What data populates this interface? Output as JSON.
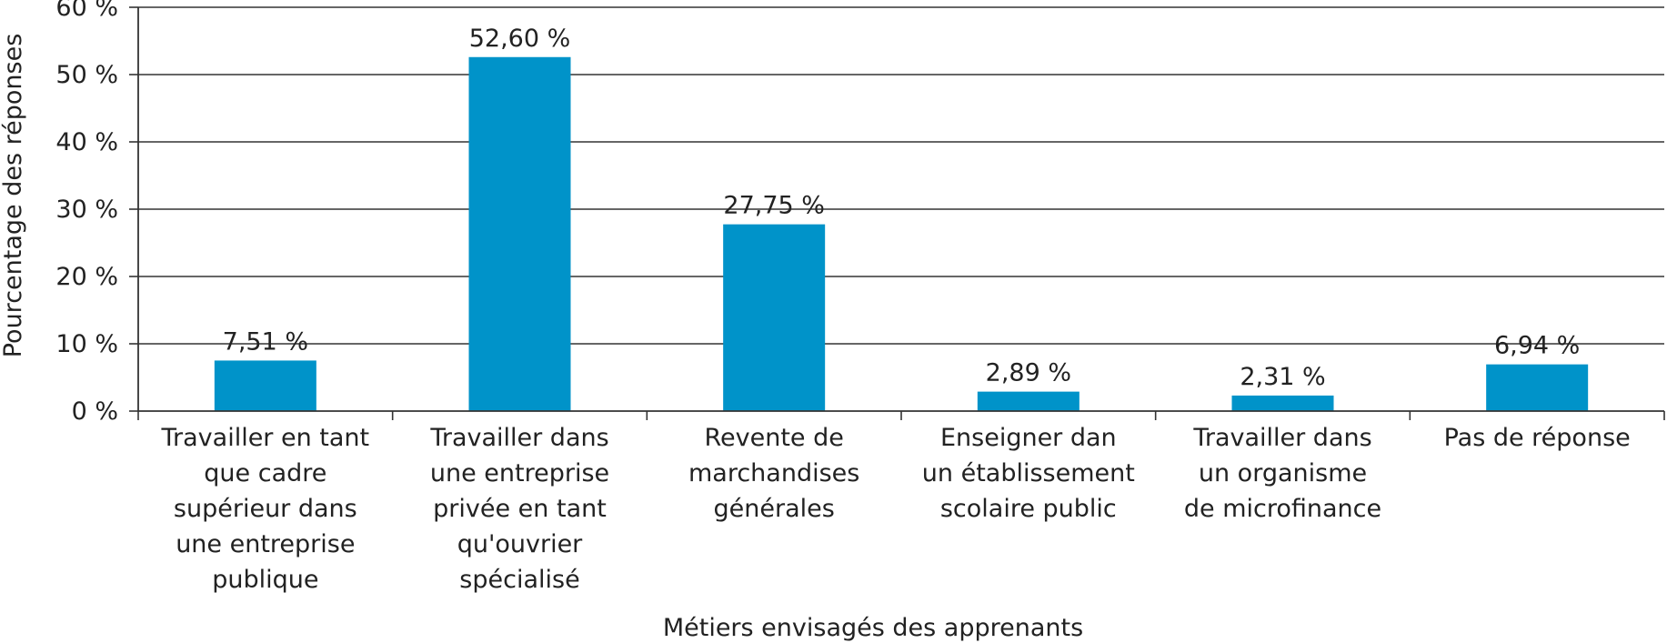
{
  "chart_data": {
    "type": "bar",
    "xlabel": "Métiers envisagés des apprenants",
    "ylabel": "Pourcentage des réponses",
    "ylim": [
      0,
      60
    ],
    "yticks": [
      0,
      10,
      20,
      30,
      40,
      50,
      60
    ],
    "ytick_labels": [
      "0 %",
      "10 %",
      "20 %",
      "30 %",
      "40 %",
      "50 %",
      "60 %"
    ],
    "grid": true,
    "bar_color": "#0093C9",
    "categories": [
      [
        "Travailler en tant",
        "que cadre",
        "supérieur dans",
        "une entreprise",
        "publique"
      ],
      [
        "Travailler dans",
        "une entreprise",
        "privée en tant",
        "qu'ouvrier",
        "spécialisé"
      ],
      [
        "Revente de",
        "marchandises",
        "générales"
      ],
      [
        "Enseigner dan",
        "un établissement",
        "scolaire public"
      ],
      [
        "Travailler dans",
        "un organisme",
        "de microfinance"
      ],
      [
        "Pas de réponse"
      ]
    ],
    "values": [
      7.51,
      52.6,
      27.75,
      2.89,
      2.31,
      6.94
    ],
    "value_labels": [
      "7,51 %",
      "52,60 %",
      "27,75 %",
      "2,89 %",
      "2,31 %",
      "6,94 %"
    ]
  }
}
